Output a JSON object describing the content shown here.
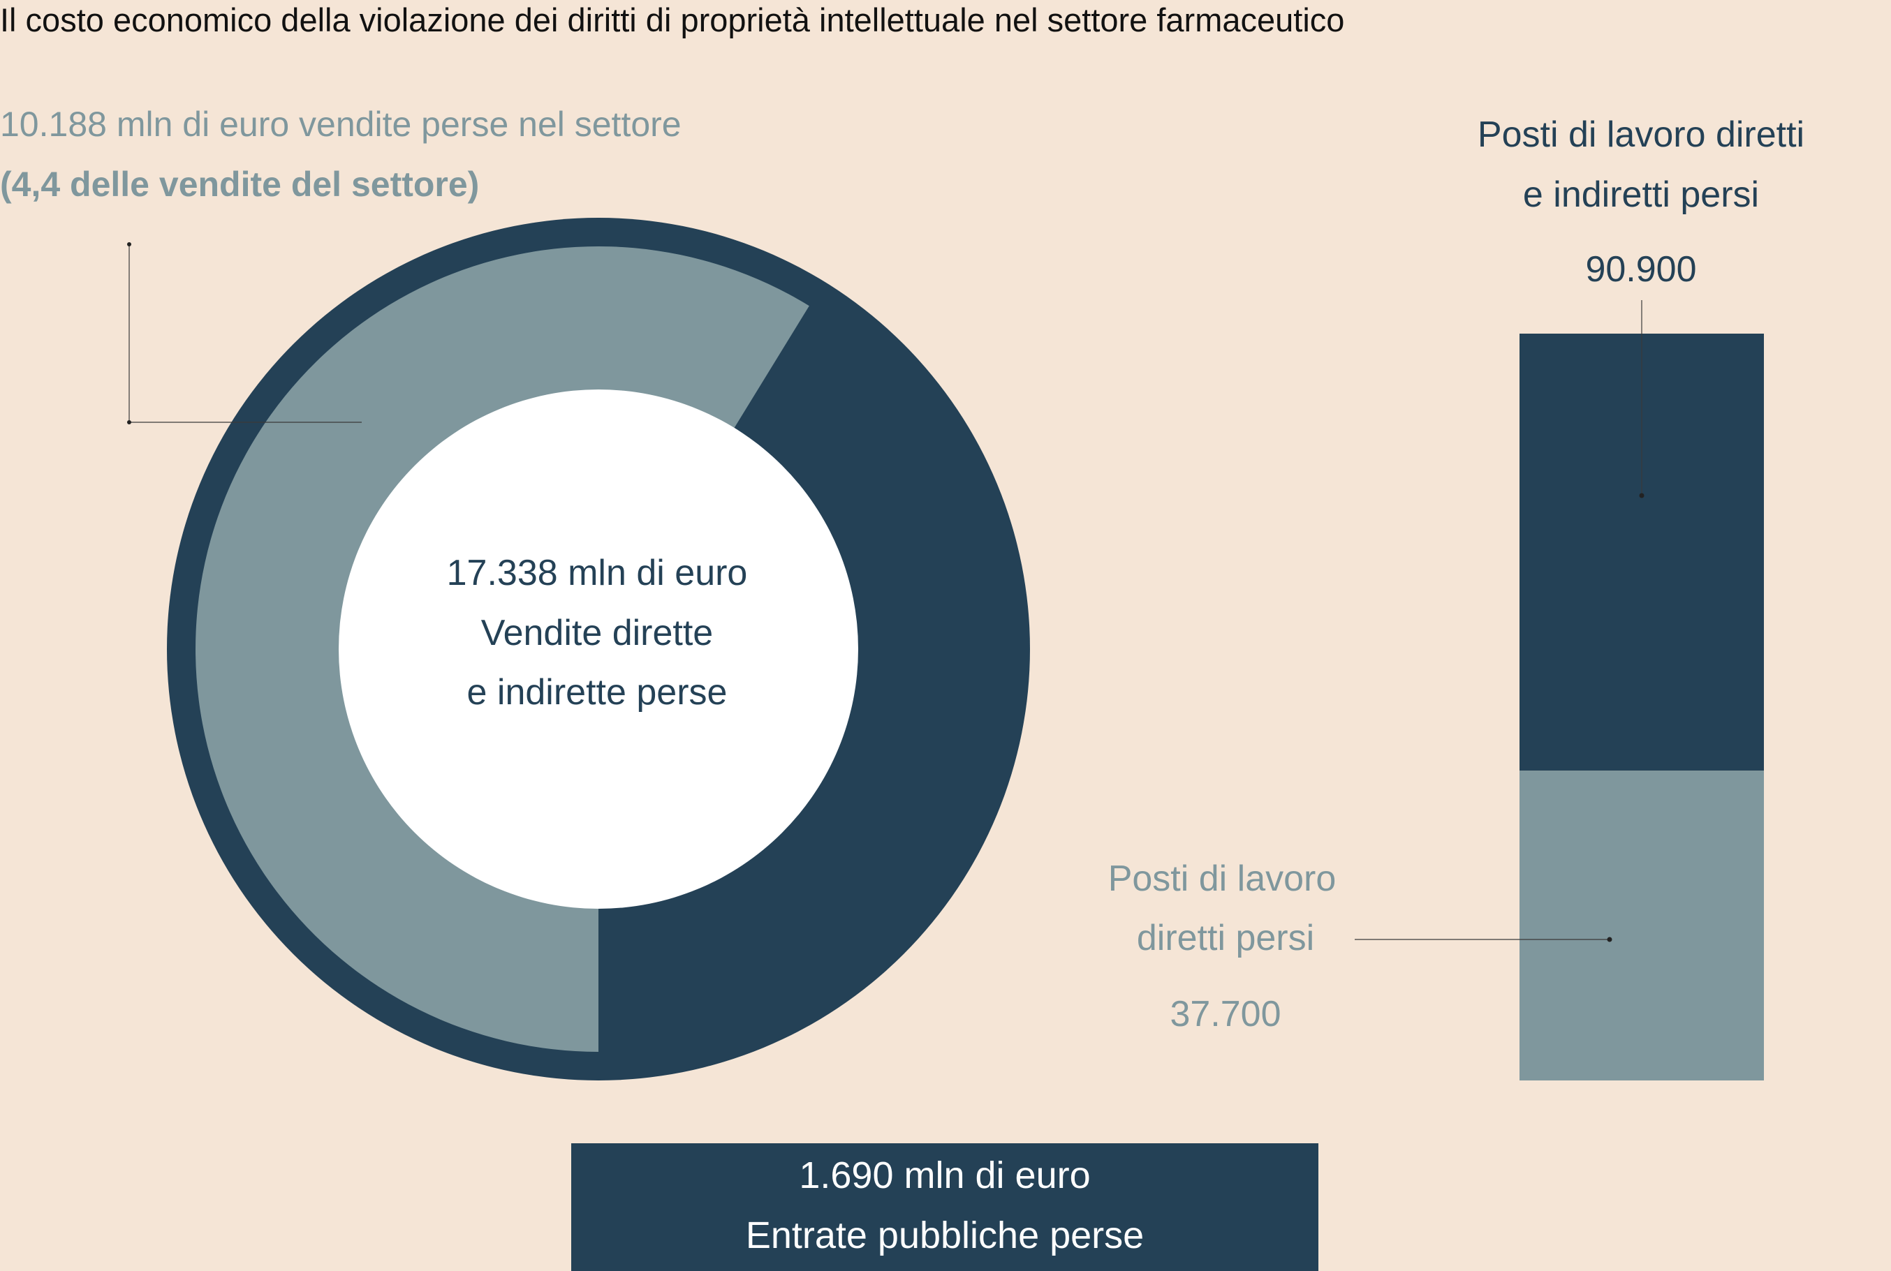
{
  "title": "Il costo economico della violazione dei diritti di proprietà intellettuale nel settore farmaceutico",
  "colors": {
    "background": "#f5e5d6",
    "dark": "#244156",
    "light": "#7f979d",
    "center": "#ffffff",
    "title": "#111111"
  },
  "chart_data": [
    {
      "type": "pie",
      "subtype": "donut",
      "title": "",
      "center_label": [
        "17.338 mln di euro",
        "Vendite dirette",
        "e indirette perse"
      ],
      "total": 17338,
      "unit": "mln di euro",
      "slices": [
        {
          "value": 10188,
          "label_lines": [
            "10.188 mln di euro vendite perse nel settore",
            "(4,4 delle vendite del settore)"
          ],
          "color": "#7f979d"
        },
        {
          "value": 7150,
          "color": "#244156"
        }
      ]
    },
    {
      "type": "bar",
      "subtype": "stacked-single",
      "title": "",
      "total": 90900,
      "total_label_lines": [
        "Posti di lavoro diretti",
        "e indiretti persi"
      ],
      "total_value_text": "90.900",
      "segments": [
        {
          "value": 37700,
          "label_lines": [
            "Posti di lavoro",
            "diretti persi"
          ],
          "value_text": "37.700",
          "color": "#7f979d"
        },
        {
          "value": 53200,
          "color": "#244156"
        }
      ]
    },
    {
      "type": "table",
      "subtype": "callout",
      "lines": [
        "1.690 mln di euro",
        "Entrate pubbliche perse"
      ],
      "value": 1690,
      "unit": "mln di euro",
      "color": "#244156"
    }
  ]
}
